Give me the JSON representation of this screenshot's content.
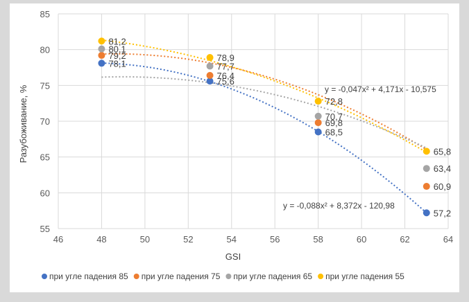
{
  "chart_data": {
    "type": "scatter",
    "xlabel": "GSI",
    "ylabel": "Разубоживание, %",
    "xlim": [
      46,
      64
    ],
    "ylim": [
      55,
      85
    ],
    "x_ticks": [
      "46",
      "48",
      "50",
      "52",
      "54",
      "56",
      "58",
      "60",
      "62",
      "64"
    ],
    "y_ticks": [
      "55",
      "60",
      "65",
      "70",
      "75",
      "80",
      "85"
    ],
    "grid": true,
    "legend_position": "bottom",
    "x": [
      48,
      53,
      58,
      63
    ],
    "series": [
      {
        "name": "при угле падения 85",
        "color": "#4472c4",
        "values": [
          78.1,
          75.6,
          68.5,
          57.2
        ],
        "labels": [
          "78,1",
          "75,6",
          "68,5",
          "57,2"
        ],
        "trend": [
          -0.088,
          8.372,
          -120.98
        ]
      },
      {
        "name": "при угле падения 75",
        "color": "#ed7d31",
        "values": [
          79.2,
          76.4,
          69.8,
          60.9
        ],
        "labels": [
          "79,2",
          "76,4",
          "69,8",
          "60,9"
        ],
        "trend": [
          -0.0642,
          6.2354,
          -71.986
        ]
      },
      {
        "name": "при угле падения 65",
        "color": "#a5a5a5",
        "values": [
          80.1,
          77.7,
          70.7,
          63.4
        ],
        "labels": [
          "80,1",
          "77,7",
          "70,7",
          "63,4"
        ],
        "trend": [
          -0.0504,
          4.9344,
          -44.57
        ]
      },
      {
        "name": "при угле падения 55",
        "color": "#ffc000",
        "values": [
          81.2,
          78.9,
          72.8,
          65.8
        ],
        "labels": [
          "81,2",
          "78,9",
          "72,8",
          "65,8"
        ],
        "trend": [
          -0.047,
          4.171,
          -10.575
        ]
      }
    ],
    "equations": [
      {
        "text": "y = -0,047x² + 4,171x - 10,575"
      },
      {
        "text": "y = -0,088x² + 8,372x - 120,98"
      }
    ]
  }
}
